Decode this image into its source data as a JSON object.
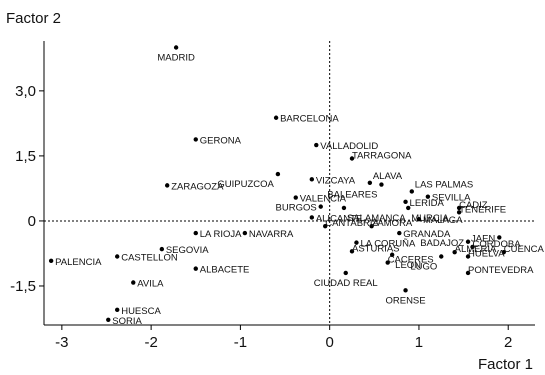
{
  "chart_data": {
    "type": "scatter",
    "title": "",
    "xlabel": "Factor 1",
    "ylabel": "Factor 2",
    "xlim": [
      -3.2,
      2.3
    ],
    "ylim": [
      -2.4,
      4.15
    ],
    "xticks": [
      -3,
      -2,
      -1,
      0,
      1,
      2
    ],
    "yticks": [
      -1.5,
      0,
      1.5,
      3.0
    ],
    "xtick_labels": [
      "-3",
      "-2",
      "-1",
      "0",
      "1",
      "2"
    ],
    "ytick_labels": [
      "-1,5",
      "0",
      "1,5",
      "3,0"
    ],
    "reference_lines": {
      "x": 0,
      "y": 0,
      "style": "dotted"
    },
    "grid": false,
    "points": [
      {
        "label": "MADRID",
        "x": -1.72,
        "y": 4.0,
        "pos": "below"
      },
      {
        "label": "BARCELONA",
        "x": -0.6,
        "y": 2.38,
        "pos": "right"
      },
      {
        "label": "GERONA",
        "x": -1.5,
        "y": 1.88,
        "pos": "right"
      },
      {
        "label": "VALLADOLID",
        "x": -0.15,
        "y": 1.75,
        "pos": "right"
      },
      {
        "label": "TARRAGONA",
        "x": 0.25,
        "y": 1.44,
        "pos": "none"
      },
      {
        "label": "ZARAGOZA",
        "x": -1.82,
        "y": 0.82,
        "pos": "right"
      },
      {
        "label": "GUIPUZCOA",
        "x": -0.58,
        "y": 1.08,
        "pos": "belowleft"
      },
      {
        "label": "VIZCAYA",
        "x": -0.2,
        "y": 0.96,
        "pos": "right"
      },
      {
        "label": "ALAVA",
        "x": 0.45,
        "y": 0.88,
        "pos": "aboveright"
      },
      {
        "label": "BALEARES",
        "x": 0.58,
        "y": 0.84,
        "pos": "belowleft"
      },
      {
        "label": "LAS PALMAS",
        "x": 0.92,
        "y": 0.68,
        "pos": "aboveright"
      },
      {
        "label": "VALENCIA",
        "x": -0.38,
        "y": 0.54,
        "pos": "right"
      },
      {
        "label": "SEVILLA",
        "x": 1.1,
        "y": 0.56,
        "pos": "right"
      },
      {
        "label": "LERIDA",
        "x": 0.85,
        "y": 0.44,
        "pos": "right"
      },
      {
        "label": "BURGOS",
        "x": -0.1,
        "y": 0.33,
        "pos": "left"
      },
      {
        "label": "CADIZ",
        "x": 1.45,
        "y": 0.3,
        "pos": "none"
      },
      {
        "label": "SALAMANCA",
        "x": 0.16,
        "y": 0.3,
        "pos": "belowright"
      },
      {
        "label": "MURCIA",
        "x": 0.88,
        "y": 0.3,
        "pos": "belowright"
      },
      {
        "label": "TENERIFE",
        "x": 1.45,
        "y": 0.2,
        "pos": "none"
      },
      {
        "label": "MALAGA",
        "x": 1.0,
        "y": 0.04,
        "pos": "right"
      },
      {
        "label": "ALICANTE",
        "x": -0.2,
        "y": 0.08,
        "pos": "right"
      },
      {
        "label": "CANTABRIA",
        "x": -0.05,
        "y": -0.12,
        "pos": "none"
      },
      {
        "label": "ZAMORA",
        "x": 0.47,
        "y": -0.12,
        "pos": "none"
      },
      {
        "label": "GRANADA",
        "x": 0.78,
        "y": -0.28,
        "pos": "right"
      },
      {
        "label": "LA RIOJA",
        "x": -1.5,
        "y": -0.28,
        "pos": "right"
      },
      {
        "label": "NAVARRA",
        "x": -0.95,
        "y": -0.28,
        "pos": "right"
      },
      {
        "label": "JAEN",
        "x": 1.9,
        "y": -0.38,
        "pos": "left"
      },
      {
        "label": "LA CORUÑA",
        "x": 0.3,
        "y": -0.5,
        "pos": "right"
      },
      {
        "label": "BADAJOZ",
        "x": 1.55,
        "y": -0.48,
        "pos": "left"
      },
      {
        "label": "CORDOBA",
        "x": 1.6,
        "y": -0.6,
        "pos": "none"
      },
      {
        "label": "SEGOVIA",
        "x": -1.88,
        "y": -0.65,
        "pos": "right"
      },
      {
        "label": "ASTURIAS",
        "x": 0.25,
        "y": -0.7,
        "pos": "none"
      },
      {
        "label": "ALMERIA",
        "x": 1.4,
        "y": -0.72,
        "pos": "none"
      },
      {
        "label": "CUENCA",
        "x": 1.95,
        "y": -0.72,
        "pos": "none"
      },
      {
        "label": "LEON",
        "x": 0.7,
        "y": -0.78,
        "pos": "belowright"
      },
      {
        "label": "CASTELLON",
        "x": -2.38,
        "y": -0.82,
        "pos": "right"
      },
      {
        "label": "LUGO",
        "x": 1.25,
        "y": -0.82,
        "pos": "belowleft"
      },
      {
        "label": "HUELVA",
        "x": 1.55,
        "y": -0.82,
        "pos": "none"
      },
      {
        "label": "CACERES",
        "x": 0.65,
        "y": -0.96,
        "pos": "none"
      },
      {
        "label": "PALENCIA",
        "x": -3.12,
        "y": -0.92,
        "pos": "right"
      },
      {
        "label": "ALBACETE",
        "x": -1.5,
        "y": -1.1,
        "pos": "right"
      },
      {
        "label": "CIUDAD REAL",
        "x": 0.18,
        "y": -1.2,
        "pos": "below"
      },
      {
        "label": "PONTEVEDRA",
        "x": 1.55,
        "y": -1.2,
        "pos": "none"
      },
      {
        "label": "AVILA",
        "x": -2.2,
        "y": -1.42,
        "pos": "right"
      },
      {
        "label": "ORENSE",
        "x": 0.85,
        "y": -1.6,
        "pos": "below"
      },
      {
        "label": "HUESCA",
        "x": -2.38,
        "y": -2.05,
        "pos": "right"
      },
      {
        "label": "SORIA",
        "x": -2.48,
        "y": -2.28,
        "pos": "right"
      }
    ],
    "extra_labels": [
      {
        "text": "TARRAGONA",
        "x": 0.25,
        "y": 1.44
      },
      {
        "text": "CANTABRIA",
        "x": -0.05,
        "y": -0.12
      },
      {
        "text": "ZAMORA",
        "x": 0.47,
        "y": -0.12
      },
      {
        "text": "CADIZ",
        "x": 1.45,
        "y": 0.3
      },
      {
        "text": "TENERIFE",
        "x": 1.45,
        "y": 0.2
      },
      {
        "text": "ASTURIAS",
        "x": 0.25,
        "y": -0.7
      },
      {
        "text": "ALMERIA",
        "x": 1.4,
        "y": -0.72
      },
      {
        "text": "CORDOBA",
        "x": 1.6,
        "y": -0.6
      },
      {
        "text": "CUENCA",
        "x": 1.95,
        "y": -0.72
      },
      {
        "text": "HUELVA",
        "x": 1.55,
        "y": -0.82
      },
      {
        "text": "CACERES",
        "x": 0.65,
        "y": -0.96
      },
      {
        "text": "PONTEVEDRA",
        "x": 1.55,
        "y": -1.2
      }
    ]
  }
}
